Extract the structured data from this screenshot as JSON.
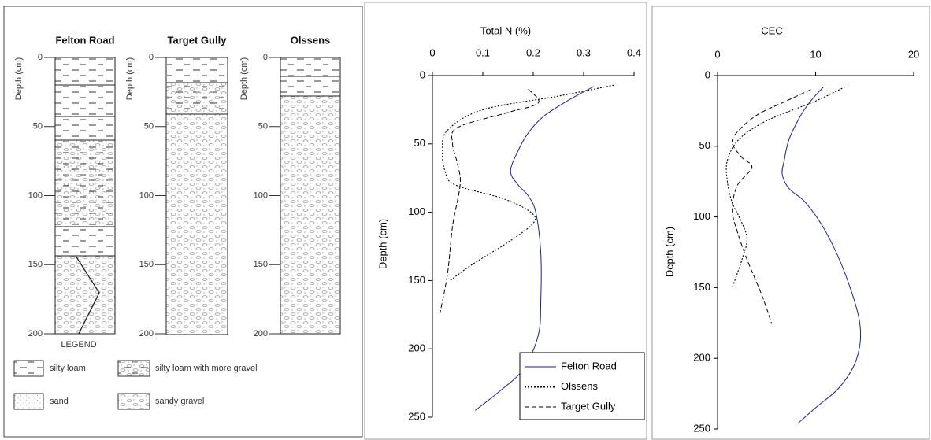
{
  "soil_profiles": {
    "columns": [
      {
        "name": "Felton Road",
        "axis_label": "Depth (cm)",
        "ylim": [
          0,
          200
        ],
        "ticks": [
          0,
          50,
          100,
          150,
          200
        ]
      },
      {
        "name": "Target Gully",
        "axis_label": "Depth (cm)",
        "ylim": [
          0,
          200
        ],
        "ticks": [
          0,
          50,
          100,
          150,
          200
        ]
      },
      {
        "name": "Olssens",
        "axis_label": "Depth (cm)",
        "ylim": [
          0,
          200
        ],
        "ticks": [
          0,
          50,
          100,
          150,
          200
        ]
      }
    ],
    "legend": {
      "title": "LEGEND",
      "items": [
        "silty loam",
        "silty loam with more gravel",
        "sand",
        "sandy gravel"
      ]
    }
  },
  "chart_data": [
    {
      "type": "line",
      "xlabel": "Total N (%)",
      "ylabel": "Depth (cm)",
      "xlim": [
        0,
        0.4
      ],
      "xticks": [
        0,
        0.1,
        0.2,
        0.3,
        0.4
      ],
      "x_axis_position": "top",
      "ylim": [
        0,
        250
      ],
      "yticks": [
        0,
        50,
        100,
        150,
        200,
        250
      ],
      "y_inverted": true,
      "legend": "lower right",
      "series": [
        {
          "name": "Felton Road",
          "color": "#1f1f8f",
          "dash": "solid",
          "values": [
            0.32,
            0.27,
            0.22,
            0.19,
            0.17,
            0.155,
            0.17,
            0.19,
            0.205,
            0.215,
            0.215,
            0.21,
            0.18,
            0.13,
            0.085
          ],
          "depth": [
            8,
            18,
            30,
            42,
            55,
            70,
            80,
            88,
            100,
            130,
            165,
            190,
            215,
            232,
            245
          ]
        },
        {
          "name": "Olssens",
          "color": "#000000",
          "dash": "dotted",
          "values": [
            0.36,
            0.25,
            0.1,
            0.03,
            0.02,
            0.025,
            0.045,
            0.14,
            0.195,
            0.2,
            0.15,
            0.08,
            0.035
          ],
          "depth": [
            7,
            15,
            25,
            40,
            55,
            70,
            80,
            90,
            100,
            108,
            122,
            138,
            150
          ]
        },
        {
          "name": "Target Gully",
          "color": "#000000",
          "dash": "dashed",
          "values": [
            0.19,
            0.21,
            0.15,
            0.05,
            0.04,
            0.05,
            0.055,
            0.04,
            0.03,
            0.015
          ],
          "depth": [
            10,
            20,
            27,
            38,
            50,
            65,
            80,
            110,
            145,
            174
          ]
        }
      ]
    },
    {
      "type": "line",
      "xlabel": "CEC",
      "ylabel": "Depth (cm)",
      "xlim": [
        0,
        20
      ],
      "xticks": [
        0,
        10,
        20
      ],
      "x_axis_position": "top",
      "ylim": [
        0,
        250
      ],
      "yticks": [
        0,
        50,
        100,
        150,
        200,
        250
      ],
      "y_inverted": true,
      "legend": false,
      "series": [
        {
          "name": "Felton Road",
          "color": "#1f1f8f",
          "dash": "solid",
          "values": [
            10.8,
            9.5,
            8.5,
            7.3,
            6.8,
            6.6,
            7.3,
            9,
            11,
            13,
            14.5,
            14.2,
            12.5,
            10,
            8.2
          ],
          "depth": [
            8,
            18,
            28,
            45,
            60,
            70,
            80,
            90,
            110,
            140,
            175,
            200,
            220,
            235,
            246
          ]
        },
        {
          "name": "Olssens",
          "color": "#000000",
          "dash": "dotted",
          "values": [
            13,
            10,
            5,
            2.2,
            1,
            1,
            1.5,
            2.2,
            3,
            2.5,
            1.5
          ],
          "depth": [
            8,
            18,
            32,
            45,
            60,
            75,
            90,
            100,
            115,
            130,
            150
          ]
        },
        {
          "name": "Target Gully",
          "color": "#000000",
          "dash": "dashed",
          "values": [
            9.5,
            7,
            4,
            2,
            1.5,
            2.5,
            3.5,
            2,
            1.5,
            2,
            3,
            4.5,
            5.5
          ],
          "depth": [
            10,
            18,
            28,
            40,
            48,
            58,
            65,
            78,
            95,
            110,
            130,
            155,
            175
          ]
        }
      ]
    }
  ]
}
